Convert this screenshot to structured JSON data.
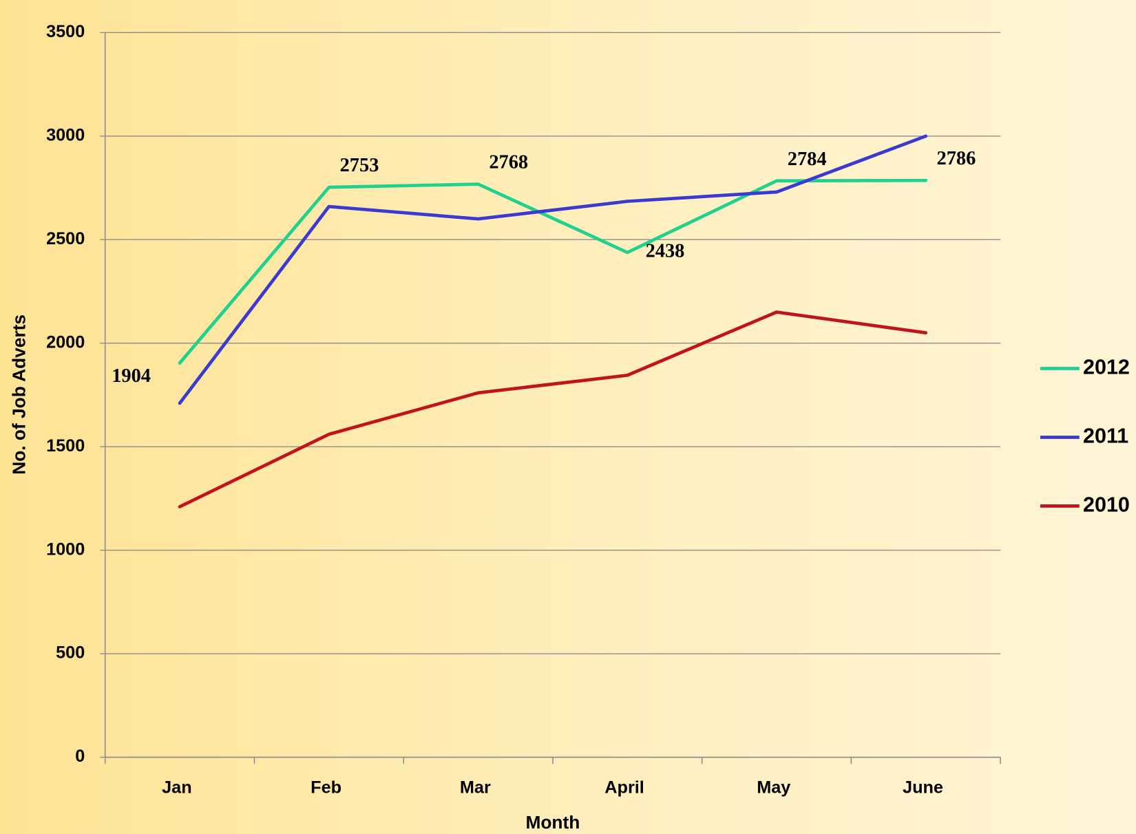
{
  "chart_data": {
    "type": "line",
    "x_label": "Month",
    "y_label": "No. of Job Adverts",
    "categories": [
      "Jan",
      "Feb",
      "Mar",
      "April",
      "May",
      "June"
    ],
    "series": [
      {
        "name": "2012",
        "color": "#1fd08f",
        "values": [
          1904,
          2753,
          2768,
          2438,
          2784,
          2786
        ],
        "show_labels": true
      },
      {
        "name": "2011",
        "color": "#3a3ad0",
        "values": [
          1710,
          2660,
          2600,
          2685,
          2730,
          3000
        ]
      },
      {
        "name": "2010",
        "color": "#c0141a",
        "values": [
          1210,
          1560,
          1760,
          1845,
          2150,
          2050
        ]
      }
    ],
    "ylim": [
      0,
      3500
    ],
    "yticks": [
      0,
      500,
      1000,
      1500,
      2000,
      2500,
      3000,
      3500
    ],
    "grid": true,
    "legend": "right"
  }
}
